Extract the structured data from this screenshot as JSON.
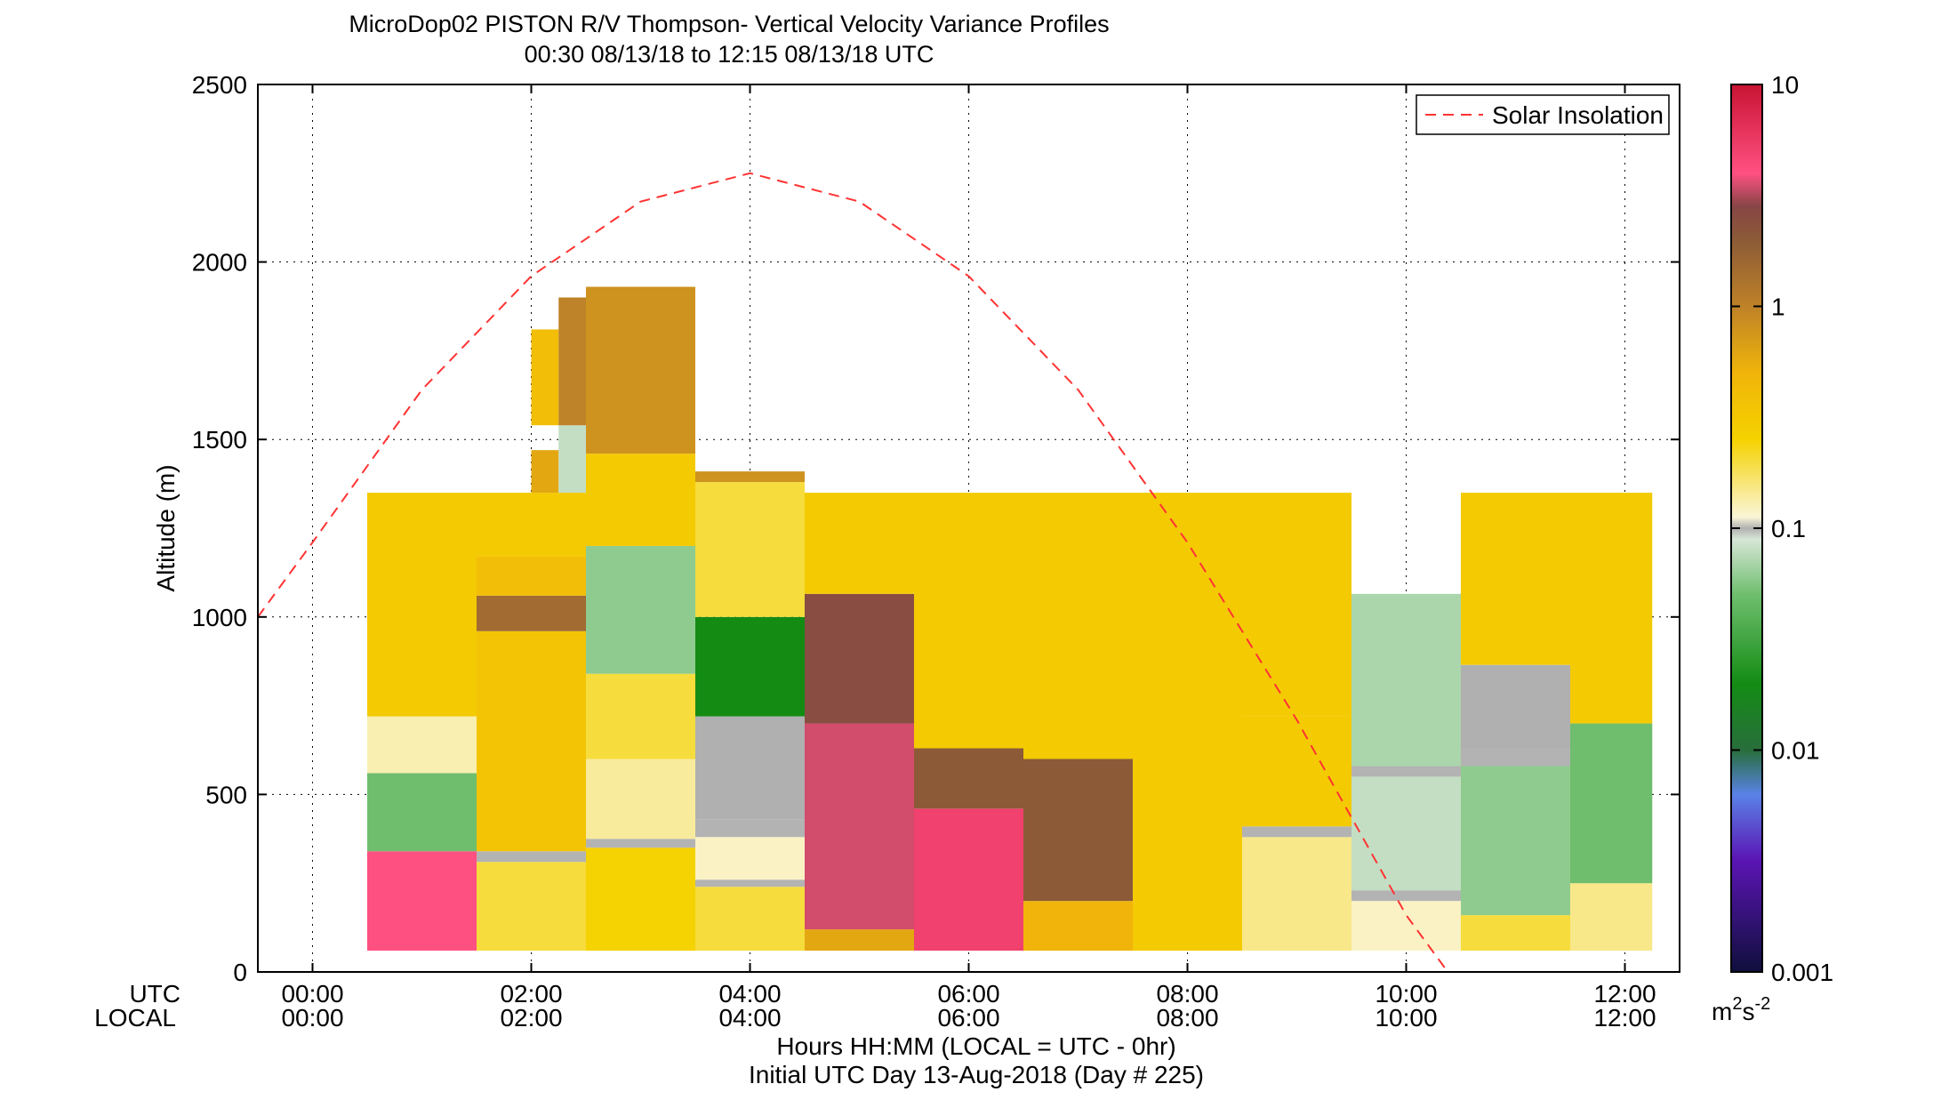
{
  "title": {
    "line1": "MicroDop02 PISTON R/V Thompson- Vertical Velocity Variance Profiles",
    "line2": "00:30 08/13/18 to 12:15 08/13/18  UTC"
  },
  "xaxis": {
    "row1_name": "UTC",
    "row2_name": "LOCAL",
    "label1": "Hours HH:MM  (LOCAL = UTC - 0hr)",
    "label2": "Initial UTC Day 13-Aug-2018 (Day # 225)",
    "ticks_utc": [
      "00:00",
      "02:00",
      "04:00",
      "06:00",
      "08:00",
      "10:00",
      "12:00"
    ],
    "ticks_local": [
      "00:00",
      "02:00",
      "04:00",
      "06:00",
      "08:00",
      "10:00",
      "12:00"
    ]
  },
  "yaxis": {
    "label": "Altitude (m)",
    "ticks": [
      "0",
      "500",
      "1000",
      "1500",
      "2000",
      "2500"
    ]
  },
  "legend": {
    "label": "Solar Insolation"
  },
  "colorbar": {
    "ticks": [
      "0.001",
      "0.01",
      "0.1",
      "1",
      "10"
    ],
    "units_base": "m",
    "units_sup1": "2",
    "units_mid": "s",
    "units_sup2": "-2",
    "scale": "log",
    "range": [
      0.001,
      10
    ]
  },
  "colors": {
    "curve": "#ff3333",
    "missing": "#b3b3b3"
  },
  "chart_data": {
    "type": "heatmap",
    "title": "MicroDop02 PISTON R/V Thompson- Vertical Velocity Variance Profiles",
    "xlabel": "Hours HH:MM  (LOCAL = UTC - 0hr)",
    "ylabel": "Altitude (m)",
    "xlim_hours": [
      -0.5,
      12.5
    ],
    "ylim": [
      0,
      2500
    ],
    "grid": true,
    "legend_position": "top-right",
    "colorbar_units": "m2s-2",
    "colorbar_scale": "log",
    "colorbar_range": [
      0.001,
      10
    ],
    "columns": [
      {
        "start": 0.5,
        "end": 1.5,
        "segments": [
          {
            "y0": 60,
            "y1": 340,
            "value": 4
          },
          {
            "y0": 340,
            "y1": 560,
            "value": 0.05
          },
          {
            "y0": 560,
            "y1": 720,
            "value": 0.13
          },
          {
            "y0": 720,
            "y1": 1350,
            "value": 0.3
          }
        ]
      },
      {
        "start": 1.5,
        "end": 2.5,
        "segments": [
          {
            "y0": 60,
            "y1": 310,
            "value": 0.2
          },
          {
            "y0": 310,
            "y1": 340,
            "value": "missing"
          },
          {
            "y0": 340,
            "y1": 960,
            "value": 0.35
          },
          {
            "y0": 960,
            "y1": 1060,
            "value": 1.5
          },
          {
            "y0": 1060,
            "y1": 1170,
            "value": 0.4
          },
          {
            "y0": 1170,
            "y1": 1350,
            "value": 0.3
          }
        ]
      },
      {
        "start": 2.0,
        "end": 2.25,
        "segments": [
          {
            "y0": 1350,
            "y1": 1470,
            "value": 0.6
          },
          {
            "y0": 1540,
            "y1": 1810,
            "value": 0.4
          }
        ]
      },
      {
        "start": 2.25,
        "end": 2.5,
        "segments": [
          {
            "y0": 1350,
            "y1": 1540,
            "value": 0.08
          },
          {
            "y0": 1540,
            "y1": 1900,
            "value": 1.0
          }
        ]
      },
      {
        "start": 2.5,
        "end": 3.5,
        "segments": [
          {
            "y0": 60,
            "y1": 350,
            "value": 0.25
          },
          {
            "y0": 350,
            "y1": 375,
            "value": "missing"
          },
          {
            "y0": 375,
            "y1": 600,
            "value": 0.14
          },
          {
            "y0": 600,
            "y1": 840,
            "value": 0.2
          },
          {
            "y0": 840,
            "y1": 1200,
            "value": 0.06
          },
          {
            "y0": 1200,
            "y1": 1460,
            "value": 0.3
          },
          {
            "y0": 1460,
            "y1": 1930,
            "value": 0.8
          }
        ]
      },
      {
        "start": 3.5,
        "end": 4.5,
        "segments": [
          {
            "y0": 60,
            "y1": 240,
            "value": 0.2
          },
          {
            "y0": 240,
            "y1": 260,
            "value": "missing"
          },
          {
            "y0": 260,
            "y1": 380,
            "value": 0.12
          },
          {
            "y0": 380,
            "y1": 430,
            "value": "missing"
          },
          {
            "y0": 430,
            "y1": 720,
            "value": 0.1
          },
          {
            "y0": 720,
            "y1": 1000,
            "value": 0.02
          },
          {
            "y0": 1000,
            "y1": 1380,
            "value": 0.2
          },
          {
            "y0": 1380,
            "y1": 1410,
            "value": 0.8
          }
        ]
      },
      {
        "start": 4.5,
        "end": 5.5,
        "segments": [
          {
            "y0": 60,
            "y1": 120,
            "value": 0.6
          },
          {
            "y0": 120,
            "y1": 700,
            "value": 3.5
          },
          {
            "y0": 700,
            "y1": 1065,
            "value": 2.5
          },
          {
            "y0": 1065,
            "y1": 1350,
            "value": 0.3
          }
        ]
      },
      {
        "start": 5.5,
        "end": 6.5,
        "segments": [
          {
            "y0": 60,
            "y1": 460,
            "value": 5
          },
          {
            "y0": 460,
            "y1": 630,
            "value": 2
          },
          {
            "y0": 630,
            "y1": 1350,
            "value": 0.3
          }
        ]
      },
      {
        "start": 6.5,
        "end": 7.5,
        "segments": [
          {
            "y0": 60,
            "y1": 200,
            "value": 0.5
          },
          {
            "y0": 200,
            "y1": 600,
            "value": 2
          },
          {
            "y0": 600,
            "y1": 1350,
            "value": 0.3
          }
        ]
      },
      {
        "start": 7.5,
        "end": 8.5,
        "segments": [
          {
            "y0": 60,
            "y1": 660,
            "value": 0.3
          },
          {
            "y0": 660,
            "y1": 1350,
            "value": 0.3
          }
        ]
      },
      {
        "start": 8.5,
        "end": 9.5,
        "segments": [
          {
            "y0": 60,
            "y1": 380,
            "value": 0.15
          },
          {
            "y0": 380,
            "y1": 410,
            "value": "missing"
          },
          {
            "y0": 410,
            "y1": 720,
            "value": 0.3
          },
          {
            "y0": 720,
            "y1": 1350,
            "value": 0.3
          }
        ]
      },
      {
        "start": 9.5,
        "end": 10.5,
        "segments": [
          {
            "y0": 60,
            "y1": 200,
            "value": 0.12
          },
          {
            "y0": 200,
            "y1": 230,
            "value": "missing"
          },
          {
            "y0": 230,
            "y1": 550,
            "value": 0.08
          },
          {
            "y0": 550,
            "y1": 580,
            "value": "missing"
          },
          {
            "y0": 580,
            "y1": 1065,
            "value": 0.07
          }
        ]
      },
      {
        "start": 10.5,
        "end": 11.5,
        "segments": [
          {
            "y0": 60,
            "y1": 160,
            "value": 0.2
          },
          {
            "y0": 160,
            "y1": 580,
            "value": 0.06
          },
          {
            "y0": 580,
            "y1": 630,
            "value": "missing"
          },
          {
            "y0": 630,
            "y1": 865,
            "value": 0.1
          },
          {
            "y0": 865,
            "y1": 1350,
            "value": 0.3
          }
        ]
      },
      {
        "start": 11.5,
        "end": 12.25,
        "segments": [
          {
            "y0": 60,
            "y1": 250,
            "value": 0.15
          },
          {
            "y0": 250,
            "y1": 700,
            "value": 0.05
          },
          {
            "y0": 700,
            "y1": 1350,
            "value": 0.3
          }
        ]
      }
    ],
    "solar_insolation": {
      "name": "Solar Insolation",
      "x_hours": [
        -0.5,
        0,
        1,
        2,
        3,
        4,
        5,
        6,
        7,
        8,
        9,
        10,
        10.5
      ],
      "y_m": [
        1000,
        1210,
        1640,
        1960,
        2170,
        2250,
        2170,
        1960,
        1640,
        1210,
        710,
        160,
        -50
      ]
    }
  }
}
